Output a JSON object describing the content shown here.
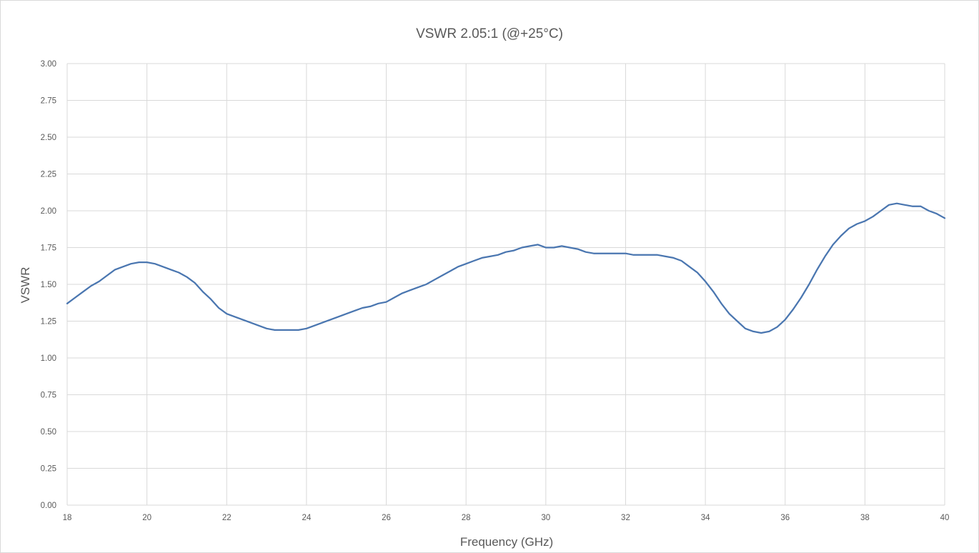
{
  "chart_data": {
    "type": "line",
    "title": "VSWR 2.05:1 (@+25°C)",
    "xlabel": "Frequency (GHz)",
    "ylabel": "VSWR",
    "xlim": [
      18,
      40
    ],
    "ylim": [
      0,
      3
    ],
    "x_ticks": [
      18,
      20,
      22,
      24,
      26,
      28,
      30,
      32,
      34,
      36,
      38,
      40
    ],
    "x_tick_labels": [
      "18",
      "20",
      "22",
      "24",
      "26",
      "28",
      "30",
      "32",
      "34",
      "36",
      "38",
      "40"
    ],
    "y_ticks": [
      0,
      0.25,
      0.5,
      0.75,
      1.0,
      1.25,
      1.5,
      1.75,
      2.0,
      2.25,
      2.5,
      2.75,
      3.0
    ],
    "y_tick_labels": [
      "0.00",
      "0.25",
      "0.50",
      "0.75",
      "1.00",
      "1.25",
      "1.50",
      "1.75",
      "2.00",
      "2.25",
      "2.50",
      "2.75",
      "3.00"
    ],
    "grid": true,
    "legend": "none",
    "color": "#4a76b0",
    "series": [
      {
        "x": [
          18,
          18.2,
          18.4,
          18.6,
          18.8,
          19,
          19.2,
          19.4,
          19.6,
          19.8,
          20,
          20.2,
          20.4,
          20.6,
          20.8,
          21,
          21.2,
          21.4,
          21.6,
          21.8,
          22,
          22.2,
          22.4,
          22.6,
          22.8,
          23,
          23.2,
          23.4,
          23.6,
          23.8,
          24,
          24.2,
          24.4,
          24.6,
          24.8,
          25,
          25.2,
          25.4,
          25.6,
          25.8,
          26,
          26.2,
          26.4,
          26.6,
          26.8,
          27,
          27.2,
          27.4,
          27.6,
          27.8,
          28,
          28.2,
          28.4,
          28.6,
          28.8,
          29,
          29.2,
          29.4,
          29.6,
          29.8,
          30,
          30.2,
          30.4,
          30.6,
          30.8,
          31,
          31.2,
          31.4,
          31.6,
          31.8,
          32,
          32.2,
          32.4,
          32.6,
          32.8,
          33,
          33.2,
          33.4,
          33.6,
          33.8,
          34,
          34.2,
          34.4,
          34.6,
          34.8,
          35,
          35.2,
          35.4,
          35.6,
          35.8,
          36,
          36.2,
          36.4,
          36.6,
          36.8,
          37,
          37.2,
          37.4,
          37.6,
          37.8,
          38,
          38.2,
          38.4,
          38.6,
          38.8,
          39,
          39.2,
          39.4,
          39.6,
          39.8,
          40
        ],
        "y": [
          1.37,
          1.41,
          1.45,
          1.49,
          1.52,
          1.56,
          1.6,
          1.62,
          1.64,
          1.65,
          1.65,
          1.64,
          1.62,
          1.6,
          1.58,
          1.55,
          1.51,
          1.45,
          1.4,
          1.34,
          1.3,
          1.28,
          1.26,
          1.24,
          1.22,
          1.2,
          1.19,
          1.19,
          1.19,
          1.19,
          1.2,
          1.22,
          1.24,
          1.26,
          1.28,
          1.3,
          1.32,
          1.34,
          1.35,
          1.37,
          1.38,
          1.41,
          1.44,
          1.46,
          1.48,
          1.5,
          1.53,
          1.56,
          1.59,
          1.62,
          1.64,
          1.66,
          1.68,
          1.69,
          1.7,
          1.72,
          1.73,
          1.75,
          1.76,
          1.77,
          1.75,
          1.75,
          1.76,
          1.75,
          1.74,
          1.72,
          1.71,
          1.71,
          1.71,
          1.71,
          1.71,
          1.7,
          1.7,
          1.7,
          1.7,
          1.69,
          1.68,
          1.66,
          1.62,
          1.58,
          1.52,
          1.45,
          1.37,
          1.3,
          1.25,
          1.2,
          1.18,
          1.17,
          1.18,
          1.21,
          1.26,
          1.33,
          1.41,
          1.5,
          1.6,
          1.69,
          1.77,
          1.83,
          1.88,
          1.91,
          1.93,
          1.96,
          2.0,
          2.04,
          2.05,
          2.04,
          2.03,
          2.03,
          2.0,
          1.98,
          1.95
        ]
      }
    ]
  }
}
